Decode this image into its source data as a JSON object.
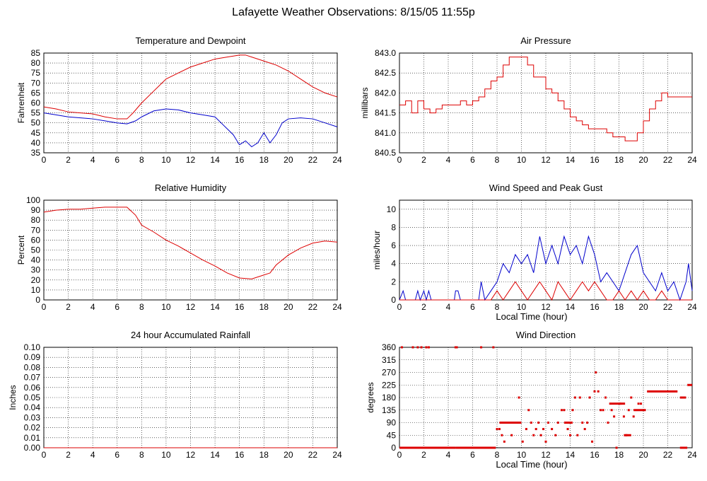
{
  "page": {
    "title": "Lafayette Weather Observations: 8/15/05 11:55p"
  },
  "colors": {
    "red": "#dd0000",
    "blue": "#0000cc",
    "grid": "#000000",
    "background": "#ffffff"
  },
  "chart_data": [
    {
      "id": "temp",
      "type": "line",
      "title": "Temperature and Dewpoint",
      "xlabel": "",
      "ylabel": "Fahrenheit",
      "xlim": [
        0,
        24
      ],
      "ylim": [
        35,
        85
      ],
      "xticks": [
        0,
        2,
        4,
        6,
        8,
        10,
        12,
        14,
        16,
        18,
        20,
        22,
        24
      ],
      "yticks": [
        35,
        40,
        45,
        50,
        55,
        60,
        65,
        70,
        75,
        80,
        85
      ],
      "grid": true,
      "series": [
        {
          "color": "#dd0000",
          "x": [
            0,
            1,
            2,
            3,
            4,
            5,
            6,
            6.8,
            7.3,
            8,
            9,
            10,
            11,
            12,
            13,
            14,
            15,
            16,
            16.5,
            17,
            18,
            19,
            20,
            21,
            22,
            23,
            24
          ],
          "y": [
            58,
            57,
            55.5,
            55,
            54.5,
            53,
            52,
            52,
            55,
            60,
            66,
            72,
            75,
            78,
            80,
            82,
            83,
            84,
            84,
            83,
            81,
            79,
            76,
            72,
            68,
            65,
            63
          ]
        },
        {
          "color": "#0000cc",
          "x": [
            0,
            1,
            2,
            3,
            4,
            5,
            6,
            6.8,
            7.5,
            8,
            9,
            10,
            11,
            12,
            13,
            14,
            14.5,
            15,
            15.5,
            16,
            16.5,
            17,
            17.5,
            18,
            18.5,
            19,
            19.5,
            20,
            21,
            22,
            23,
            24
          ],
          "y": [
            55,
            54,
            53,
            52.5,
            52,
            51,
            50,
            49.5,
            51,
            53,
            56,
            57,
            56.5,
            55,
            54,
            53,
            50,
            47,
            44,
            39,
            41,
            38,
            40,
            45,
            40,
            44,
            50,
            52,
            52.5,
            52,
            50,
            48
          ]
        }
      ]
    },
    {
      "id": "pressure",
      "type": "line",
      "title": "Air Pressure",
      "xlabel": "",
      "ylabel": "millibars",
      "xlim": [
        0,
        24
      ],
      "ylim": [
        840.5,
        843
      ],
      "xticks": [
        0,
        2,
        4,
        6,
        8,
        10,
        12,
        14,
        16,
        18,
        20,
        22,
        24
      ],
      "yticks": [
        840.5,
        841.0,
        841.5,
        842.0,
        842.5,
        843.0
      ],
      "ytick_labels": [
        "840.5",
        "841.0",
        "841.5",
        "842.0",
        "842.5",
        "843.0"
      ],
      "grid": true,
      "series": [
        {
          "color": "#dd0000",
          "step": true,
          "x": [
            0,
            0.5,
            1,
            1.5,
            2,
            2.5,
            3,
            3.5,
            4,
            5,
            5.5,
            6,
            6.5,
            7,
            7.5,
            8,
            8.5,
            9,
            10,
            10.5,
            11,
            12,
            12.5,
            13,
            13.5,
            14,
            14.5,
            15,
            15.5,
            16,
            17,
            17.5,
            18,
            18.5,
            19,
            19.5,
            20,
            20.5,
            21,
            21.5,
            22,
            24
          ],
          "y": [
            841.7,
            841.8,
            841.5,
            841.8,
            841.6,
            841.5,
            841.6,
            841.7,
            841.7,
            841.8,
            841.7,
            841.8,
            841.9,
            842.1,
            842.3,
            842.4,
            842.7,
            842.9,
            842.9,
            842.7,
            842.4,
            842.1,
            842.0,
            841.8,
            841.6,
            841.4,
            841.3,
            841.2,
            841.1,
            841.1,
            841.0,
            840.9,
            840.9,
            840.8,
            840.8,
            841.0,
            841.3,
            841.6,
            841.8,
            842.0,
            841.9,
            841.9
          ]
        }
      ]
    },
    {
      "id": "humidity",
      "type": "line",
      "title": "Relative Humidity",
      "xlabel": "",
      "ylabel": "Percent",
      "xlim": [
        0,
        24
      ],
      "ylim": [
        0,
        100
      ],
      "xticks": [
        0,
        2,
        4,
        6,
        8,
        10,
        12,
        14,
        16,
        18,
        20,
        22,
        24
      ],
      "yticks": [
        0,
        10,
        20,
        30,
        40,
        50,
        60,
        70,
        80,
        90,
        100
      ],
      "grid": true,
      "series": [
        {
          "color": "#dd0000",
          "x": [
            0,
            1,
            2,
            3,
            4,
            5,
            6,
            6.8,
            7.5,
            8,
            9,
            10,
            11,
            12,
            13,
            14,
            15,
            16,
            17,
            18,
            18.5,
            19,
            20,
            21,
            22,
            23,
            24
          ],
          "y": [
            88,
            90,
            91,
            91,
            92,
            93,
            93,
            93,
            85,
            75,
            68,
            60,
            54,
            47,
            40,
            34,
            27,
            22,
            21,
            25,
            27,
            35,
            45,
            52,
            57,
            59,
            58
          ]
        }
      ]
    },
    {
      "id": "wind-speed",
      "type": "line",
      "title": "Wind Speed and Peak Gust",
      "xlabel": "Local Time (hour)",
      "ylabel": "miles/hour",
      "xlim": [
        0,
        24
      ],
      "ylim": [
        0,
        11
      ],
      "xticks": [
        0,
        2,
        4,
        6,
        8,
        10,
        12,
        14,
        16,
        18,
        20,
        22,
        24
      ],
      "yticks": [
        0,
        2,
        4,
        6,
        8,
        10
      ],
      "grid": true,
      "series": [
        {
          "color": "#0000cc",
          "x": [
            0,
            0.3,
            0.5,
            0.7,
            1.3,
            1.5,
            1.7,
            2,
            2.2,
            2.4,
            2.6,
            4.5,
            4.6,
            4.8,
            5,
            6.5,
            6.7,
            7,
            7.5,
            8,
            8.5,
            9,
            9.5,
            10,
            10.5,
            11,
            11.5,
            12,
            12.5,
            13,
            13.5,
            14,
            14.5,
            15,
            15.5,
            16,
            16.5,
            17,
            17.5,
            18,
            18.5,
            19,
            19.5,
            20,
            20.5,
            21,
            21.5,
            22,
            22.5,
            23,
            23.5,
            23.7,
            24
          ],
          "y": [
            0,
            1,
            0,
            0,
            0,
            1,
            0,
            1,
            0,
            1,
            0,
            0,
            1,
            1,
            0,
            0,
            2,
            0,
            1,
            2,
            4,
            3,
            5,
            4,
            5,
            3,
            7,
            4,
            6,
            4,
            7,
            5,
            6,
            4,
            7,
            5,
            2,
            3,
            2,
            1,
            3,
            5,
            6,
            3,
            2,
            1,
            3,
            1,
            2,
            0,
            2,
            4,
            1
          ]
        },
        {
          "color": "#dd0000",
          "x": [
            0,
            7.5,
            8,
            8.5,
            9,
            9.5,
            10,
            10.5,
            11,
            11.5,
            12,
            12.5,
            13,
            13.5,
            14,
            14.5,
            15,
            15.5,
            16,
            16.5,
            17,
            17.5,
            18,
            18.5,
            19,
            19.5,
            20,
            20.5,
            21,
            21.5,
            22,
            22.5,
            23,
            24
          ],
          "y": [
            0,
            0,
            1,
            0,
            1,
            2,
            1,
            0,
            1,
            2,
            1,
            0,
            2,
            1,
            0,
            1,
            2,
            1,
            2,
            1,
            0,
            0,
            1,
            0,
            1,
            0,
            1,
            0,
            0,
            1,
            0,
            0,
            0,
            0
          ]
        }
      ]
    },
    {
      "id": "rainfall",
      "type": "line",
      "title": "24 hour Accumulated Rainfall",
      "xlabel": "",
      "ylabel": "Inches",
      "xlim": [
        0,
        24
      ],
      "ylim": [
        0,
        0.1
      ],
      "xticks": [
        0,
        2,
        4,
        6,
        8,
        10,
        12,
        14,
        16,
        18,
        20,
        22,
        24
      ],
      "yticks": [
        0,
        0.01,
        0.02,
        0.03,
        0.04,
        0.05,
        0.06,
        0.07,
        0.08,
        0.09,
        0.1
      ],
      "ytick_labels": [
        "0.00",
        "0.01",
        "0.02",
        "0.03",
        "0.04",
        "0.05",
        "0.06",
        "0.07",
        "0.08",
        "0.09",
        "0.10"
      ],
      "grid": true,
      "series": [
        {
          "color": "#dd0000",
          "x": [
            0,
            24
          ],
          "y": [
            0,
            0
          ]
        }
      ]
    },
    {
      "id": "wind-direction",
      "type": "scatter",
      "title": "Wind Direction",
      "xlabel": "Local Time (hour)",
      "ylabel": "degrees",
      "xlim": [
        0,
        24
      ],
      "ylim": [
        0,
        360
      ],
      "xticks": [
        0,
        2,
        4,
        6,
        8,
        10,
        12,
        14,
        16,
        18,
        20,
        22,
        24
      ],
      "yticks": [
        0,
        45,
        90,
        135,
        180,
        225,
        270,
        315,
        360
      ],
      "grid": true,
      "series": [
        {
          "color": "#dd0000",
          "segments": [
            {
              "x1": 0,
              "x2": 4.6,
              "y": 0
            },
            {
              "x1": 4.6,
              "x2": 7.9,
              "y": 0
            },
            {
              "x1": 20.3,
              "x2": 22.8,
              "y": 202
            },
            {
              "x1": 23,
              "x2": 23.5,
              "y": 180
            },
            {
              "x1": 23.6,
              "x2": 24,
              "y": 225
            },
            {
              "x1": 23,
              "x2": 23.6,
              "y": 0
            },
            {
              "x1": 8.2,
              "x2": 10,
              "y": 90
            },
            {
              "x1": 13.5,
              "x2": 14.2,
              "y": 90
            },
            {
              "x1": 17.2,
              "x2": 18.5,
              "y": 158
            },
            {
              "x1": 19.2,
              "x2": 20.2,
              "y": 135
            },
            {
              "x1": 18.4,
              "x2": 19,
              "y": 45
            }
          ],
          "points": [
            {
              "x": 0.2,
              "y": 360
            },
            {
              "x": 1.1,
              "y": 360
            },
            {
              "x": 1.5,
              "y": 360
            },
            {
              "x": 1.8,
              "y": 360
            },
            {
              "x": 2.2,
              "y": 360
            },
            {
              "x": 2.4,
              "y": 360
            },
            {
              "x": 4.6,
              "y": 360
            },
            {
              "x": 4.7,
              "y": 360
            },
            {
              "x": 6.7,
              "y": 360
            },
            {
              "x": 7.7,
              "y": 360
            },
            {
              "x": 8,
              "y": 67
            },
            {
              "x": 8.2,
              "y": 67
            },
            {
              "x": 8.4,
              "y": 45
            },
            {
              "x": 8.6,
              "y": 22
            },
            {
              "x": 9.2,
              "y": 45
            },
            {
              "x": 9.6,
              "y": 90
            },
            {
              "x": 9.8,
              "y": 180
            },
            {
              "x": 10.1,
              "y": 22
            },
            {
              "x": 10.4,
              "y": 67
            },
            {
              "x": 10.6,
              "y": 135
            },
            {
              "x": 10.8,
              "y": 90
            },
            {
              "x": 11,
              "y": 45
            },
            {
              "x": 11.2,
              "y": 67
            },
            {
              "x": 11.4,
              "y": 90
            },
            {
              "x": 11.6,
              "y": 45
            },
            {
              "x": 11.8,
              "y": 67
            },
            {
              "x": 12,
              "y": 22
            },
            {
              "x": 12.2,
              "y": 90
            },
            {
              "x": 12.5,
              "y": 67
            },
            {
              "x": 12.8,
              "y": 45
            },
            {
              "x": 13,
              "y": 90
            },
            {
              "x": 13.3,
              "y": 135
            },
            {
              "x": 13.5,
              "y": 135
            },
            {
              "x": 13.8,
              "y": 67
            },
            {
              "x": 14,
              "y": 45
            },
            {
              "x": 14.2,
              "y": 135
            },
            {
              "x": 14.4,
              "y": 180
            },
            {
              "x": 14.6,
              "y": 45
            },
            {
              "x": 14.8,
              "y": 180
            },
            {
              "x": 15,
              "y": 90
            },
            {
              "x": 15.2,
              "y": 67
            },
            {
              "x": 15.4,
              "y": 90
            },
            {
              "x": 15.6,
              "y": 180
            },
            {
              "x": 15.8,
              "y": 22
            },
            {
              "x": 16,
              "y": 202
            },
            {
              "x": 16.1,
              "y": 270
            },
            {
              "x": 16.3,
              "y": 202
            },
            {
              "x": 16.5,
              "y": 135
            },
            {
              "x": 16.7,
              "y": 135
            },
            {
              "x": 16.9,
              "y": 180
            },
            {
              "x": 17.1,
              "y": 90
            },
            {
              "x": 17.4,
              "y": 135
            },
            {
              "x": 17.6,
              "y": 112
            },
            {
              "x": 17.8,
              "y": 0
            },
            {
              "x": 18.1,
              "y": 158
            },
            {
              "x": 18.4,
              "y": 112
            },
            {
              "x": 18.6,
              "y": 45
            },
            {
              "x": 18.8,
              "y": 135
            },
            {
              "x": 19,
              "y": 180
            },
            {
              "x": 19.2,
              "y": 112
            },
            {
              "x": 19.6,
              "y": 158
            },
            {
              "x": 19.8,
              "y": 158
            }
          ]
        }
      ]
    }
  ]
}
